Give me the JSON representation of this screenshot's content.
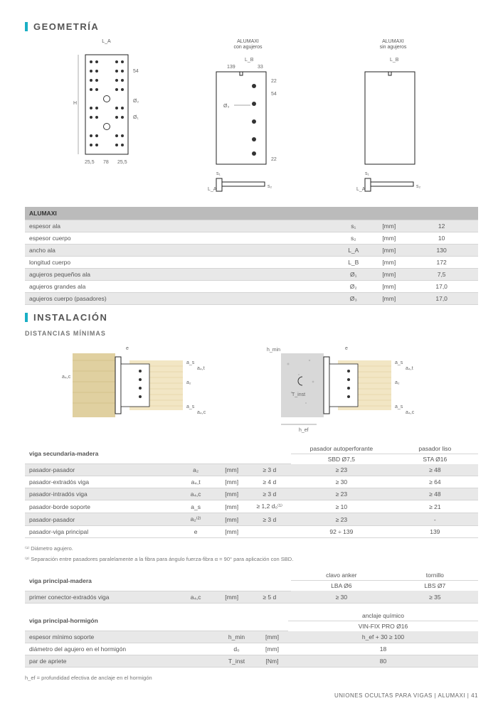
{
  "geometria": {
    "title": "GEOMETRÍA",
    "diag_labels": {
      "col1_top": "L_A",
      "col2_caption": "ALUMAXI\ncon agujeros",
      "col3_caption": "ALUMAXI\nsin agujeros",
      "lb": "L_B",
      "dim_139": "139",
      "dim_33": "33",
      "dim_22t": "22",
      "dim_54": "54",
      "dim_54b": "54",
      "dim_22b": "22",
      "phi3": "Ø₃",
      "phi2": "Ø₂",
      "phi1": "Ø₁",
      "H": "H",
      "bot_255": "25,5",
      "bot_78": "78",
      "bot_255b": "25,5",
      "s1": "s₁",
      "s2": "s₂",
      "La_b": "L_A"
    },
    "table_header": "ALUMAXI",
    "rows": [
      {
        "label": "espesor ala",
        "sym": "s₁",
        "unit": "[mm]",
        "val": "12",
        "alt": true
      },
      {
        "label": "espesor cuerpo",
        "sym": "s₂",
        "unit": "[mm]",
        "val": "10",
        "alt": false
      },
      {
        "label": "ancho ala",
        "sym": "L_A",
        "unit": "[mm]",
        "val": "130",
        "alt": true
      },
      {
        "label": "longitud cuerpo",
        "sym": "L_B",
        "unit": "[mm]",
        "val": "172",
        "alt": false
      },
      {
        "label": "agujeros pequeños ala",
        "sym": "Ø₁",
        "unit": "[mm]",
        "val": "7,5",
        "alt": true
      },
      {
        "label": "agujeros grandes ala",
        "sym": "Ø₂",
        "unit": "[mm]",
        "val": "17,0",
        "alt": false
      },
      {
        "label": "agujeros cuerpo (pasadores)",
        "sym": "Ø₃",
        "unit": "[mm]",
        "val": "17,0",
        "alt": true
      }
    ]
  },
  "instalacion": {
    "title": "INSTALACIÓN",
    "subheader": "DISTANCIAS MÍNIMAS",
    "diag_labels": {
      "e": "e",
      "a2": "a₂",
      "a34t": "a₃,t",
      "a4c": "a₄,c",
      "a4t": "a₄,t",
      "a4cr": "a₄,c",
      "as": "a_s",
      "hmin": "h_min",
      "Tinst": "T_inst",
      "hef": "h_ef"
    },
    "table1": {
      "head_left": "viga secundaria-madera",
      "head_c1": "pasador autoperforante",
      "head_c1b": "SBD Ø7,5",
      "head_c2": "pasador liso",
      "head_c2b": "STA Ø16",
      "rows": [
        {
          "label": "pasador-pasador",
          "sym": "a₂",
          "unit": "[mm]",
          "rule": "≥ 3 d",
          "v1": "≥ 23",
          "v2": "≥ 48",
          "alt": true
        },
        {
          "label": "pasador-extradós viga",
          "sym": "a₄,t",
          "unit": "[mm]",
          "rule": "≥ 4 d",
          "v1": "≥ 30",
          "v2": "≥ 64",
          "alt": false
        },
        {
          "label": "pasador-intradós viga",
          "sym": "a₄,c",
          "unit": "[mm]",
          "rule": "≥ 3 d",
          "v1": "≥ 23",
          "v2": "≥ 48",
          "alt": true
        },
        {
          "label": "pasador-borde soporte",
          "sym": "a_s",
          "unit": "[mm]",
          "rule": "≥ 1,2 d₀⁽¹⁾",
          "v1": "≥ 10",
          "v2": "≥ 21",
          "alt": false
        },
        {
          "label": "pasador-pasador",
          "sym": "a₂⁽²⁾",
          "unit": "[mm]",
          "rule": "≥ 3 d",
          "v1": "≥ 23",
          "v2": "-",
          "alt": true
        },
        {
          "label": "pasador-viga principal",
          "sym": "e",
          "unit": "[mm]",
          "rule": "",
          "v1": "92 ÷ 139",
          "v2": "139",
          "alt": false
        }
      ],
      "foot1": "⁽¹⁾ Diámetro agujero.",
      "foot2": "⁽²⁾ Separación entre pasadores paralelamente a la fibra para ángulo fuerza-fibra α = 90° para aplicación con SBD."
    },
    "table2": {
      "head_left": "viga principal-madera",
      "head_c1": "clavo anker",
      "head_c1b": "LBA Ø6",
      "head_c2": "tornillo",
      "head_c2b": "LBS Ø7",
      "rows": [
        {
          "label": "primer conector-extradós viga",
          "sym": "a₄,c",
          "unit": "[mm]",
          "rule": "≥ 5 d",
          "v1": "≥ 30",
          "v2": "≥ 35",
          "alt": true
        }
      ]
    },
    "table3": {
      "head_left": "viga principal-hormigón",
      "head_c1": "anclaje químico",
      "head_c1b": "VIN-FIX PRO Ø16",
      "rows": [
        {
          "label": "espesor mínimo soporte",
          "sym": "h_min",
          "unit": "[mm]",
          "v1": "h_ef + 30 ≥ 100",
          "alt": true
        },
        {
          "label": "diámetro del agujero en el hormigón",
          "sym": "d₀",
          "unit": "[mm]",
          "v1": "18",
          "alt": false
        },
        {
          "label": "par de apriete",
          "sym": "T_inst",
          "unit": "[Nm]",
          "v1": "80",
          "alt": true
        }
      ],
      "foot": "h_ef = profundidad efectiva de anclaje en el hormigón"
    }
  },
  "footer": {
    "text": "UNIONES OCULTAS PARA VIGAS  |  ALUMAXI  |  41"
  }
}
